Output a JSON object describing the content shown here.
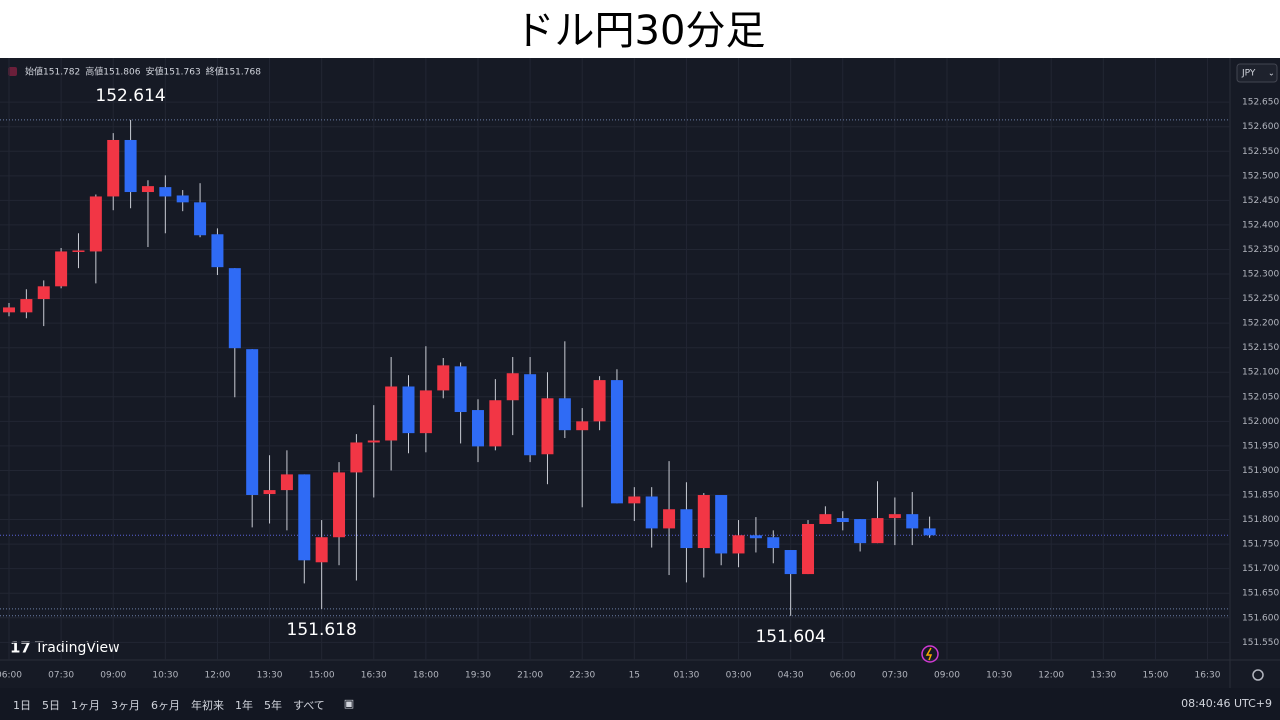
{
  "title": "ドル円30分足",
  "chart_data": {
    "type": "candlestick",
    "categories": [
      "06:00",
      null,
      null,
      "07:30",
      null,
      null,
      "09:00",
      null,
      null,
      "10:30",
      null,
      null,
      "12:00",
      null,
      null,
      "13:30",
      null,
      null,
      "15:00",
      null,
      null,
      "16:30",
      null,
      null,
      "18:00",
      null,
      null,
      "19:30",
      null,
      null,
      "21:00",
      null,
      null,
      "22:30",
      null,
      null,
      "15",
      null,
      null,
      "01:30",
      null,
      null,
      "03:00",
      null,
      null,
      "04:30",
      null,
      null,
      "06:00",
      null,
      null,
      "07:30",
      null,
      null,
      "09:00",
      null,
      null,
      "10:30",
      null,
      null,
      "12:00",
      null,
      null,
      "13:30",
      null,
      null,
      "15:00",
      null,
      null,
      "16:30",
      null,
      null
    ],
    "open": [
      152.222,
      152.222,
      152.249,
      152.275,
      152.346,
      152.346,
      152.458,
      152.573,
      152.467,
      152.477,
      152.46,
      152.446,
      152.381,
      152.312,
      152.147,
      151.852,
      151.86,
      151.892,
      151.713,
      151.764,
      151.896,
      151.957,
      151.961,
      152.071,
      151.976,
      152.063,
      152.112,
      152.023,
      151.949,
      152.043,
      152.096,
      151.933,
      152.047,
      151.982,
      152.0,
      152.084,
      151.833,
      151.847,
      151.782,
      151.821,
      151.742,
      151.85,
      151.731,
      151.768,
      151.764,
      151.738,
      151.689,
      151.791,
      151.803,
      151.801,
      151.752,
      151.803,
      151.811,
      151.782,
      null,
      null,
      null,
      null,
      null,
      null,
      null,
      null,
      null,
      null,
      null,
      null,
      null,
      null,
      null,
      null,
      null,
      null
    ],
    "high": [
      152.241,
      152.269,
      152.287,
      152.353,
      152.383,
      152.462,
      152.587,
      152.614,
      152.491,
      152.501,
      152.471,
      152.485,
      152.393,
      152.312,
      152.147,
      151.931,
      151.941,
      151.892,
      151.799,
      151.917,
      151.974,
      152.033,
      152.131,
      152.094,
      152.153,
      152.129,
      152.12,
      152.045,
      152.086,
      152.131,
      152.131,
      152.1,
      152.163,
      152.027,
      152.092,
      152.106,
      151.866,
      151.866,
      151.919,
      151.876,
      151.854,
      151.85,
      151.799,
      151.805,
      151.778,
      151.738,
      151.799,
      151.827,
      151.817,
      151.801,
      151.878,
      151.845,
      151.856,
      151.806,
      null,
      null,
      null,
      null,
      null,
      null,
      null,
      null,
      null,
      null,
      null,
      null,
      null,
      null,
      null,
      null,
      null,
      null
    ],
    "low": [
      152.214,
      152.21,
      152.194,
      152.271,
      152.312,
      152.281,
      152.43,
      152.434,
      152.355,
      152.383,
      152.428,
      152.375,
      152.298,
      152.049,
      151.784,
      151.792,
      151.778,
      151.67,
      151.618,
      151.707,
      151.676,
      151.845,
      151.9,
      151.935,
      151.937,
      152.047,
      151.955,
      151.917,
      151.941,
      151.972,
      151.917,
      151.872,
      151.966,
      151.825,
      151.982,
      151.833,
      151.797,
      151.743,
      151.687,
      151.672,
      151.682,
      151.707,
      151.703,
      151.733,
      151.711,
      151.604,
      151.689,
      151.791,
      151.778,
      151.735,
      151.752,
      151.748,
      151.748,
      151.763,
      null,
      null,
      null,
      null,
      null,
      null,
      null,
      null,
      null,
      null,
      null,
      null,
      null,
      null,
      null,
      null,
      null,
      null
    ],
    "close": [
      152.232,
      152.249,
      152.275,
      152.346,
      152.348,
      152.458,
      152.573,
      152.467,
      152.479,
      152.458,
      152.446,
      152.379,
      152.314,
      152.149,
      151.85,
      151.86,
      151.892,
      151.717,
      151.764,
      151.896,
      151.957,
      151.961,
      152.071,
      151.976,
      152.063,
      152.114,
      152.019,
      151.949,
      152.043,
      152.098,
      151.931,
      152.047,
      151.982,
      152.0,
      152.084,
      151.833,
      151.847,
      151.782,
      151.821,
      151.742,
      151.85,
      151.731,
      151.768,
      151.762,
      151.742,
      151.689,
      151.791,
      151.811,
      151.795,
      151.752,
      151.803,
      151.811,
      151.782,
      151.768,
      null,
      null,
      null,
      null,
      null,
      null,
      null,
      null,
      null,
      null,
      null,
      null,
      null,
      null,
      null,
      null,
      null,
      null
    ],
    "up_color": "#f23645",
    "down_color": "#2f6bf5",
    "ylim": [
      151.514,
      152.687
    ],
    "yticks": [
      {
        "value": 151.55,
        "label": "151.550"
      },
      {
        "value": 151.6,
        "label": "151.600"
      },
      {
        "value": 151.65,
        "label": "151.650"
      },
      {
        "value": 151.7,
        "label": "151.700"
      },
      {
        "value": 151.75,
        "label": "151.750"
      },
      {
        "value": 151.8,
        "label": "151.800"
      },
      {
        "value": 151.85,
        "label": "151.850"
      },
      {
        "value": 151.9,
        "label": "151.900"
      },
      {
        "value": 151.95,
        "label": "151.950"
      },
      {
        "value": 152.0,
        "label": "152.000"
      },
      {
        "value": 152.05,
        "label": "152.050"
      },
      {
        "value": 152.1,
        "label": "152.100"
      },
      {
        "value": 152.15,
        "label": "152.150"
      },
      {
        "value": 152.2,
        "label": "152.200"
      },
      {
        "value": 152.25,
        "label": "152.250"
      },
      {
        "value": 152.3,
        "label": "152.300"
      },
      {
        "value": 152.35,
        "label": "152.350"
      },
      {
        "value": 152.4,
        "label": "152.400"
      },
      {
        "value": 152.45,
        "label": "152.450"
      },
      {
        "value": 152.5,
        "label": "152.500"
      },
      {
        "value": 152.55,
        "label": "152.550"
      },
      {
        "value": 152.6,
        "label": "152.600"
      },
      {
        "value": 152.65,
        "label": "152.650"
      }
    ],
    "grid": true,
    "annotations": [
      {
        "label": "152.614",
        "value": 152.614
      },
      {
        "label": "151.618",
        "value": 151.618
      },
      {
        "label": "151.604",
        "value": 151.604
      }
    ],
    "ohlc_labels": [
      "始値",
      "高値",
      "安値",
      "終値"
    ],
    "currency": "JPY"
  },
  "logo": "TradingView",
  "toolbar": {
    "ranges": [
      "1日",
      "5日",
      "1ヶ月",
      "3ヶ月",
      "6ヶ月",
      "年初来",
      "1年",
      "5年",
      "すべて"
    ],
    "clock": "08:40:46 UTC+9"
  }
}
